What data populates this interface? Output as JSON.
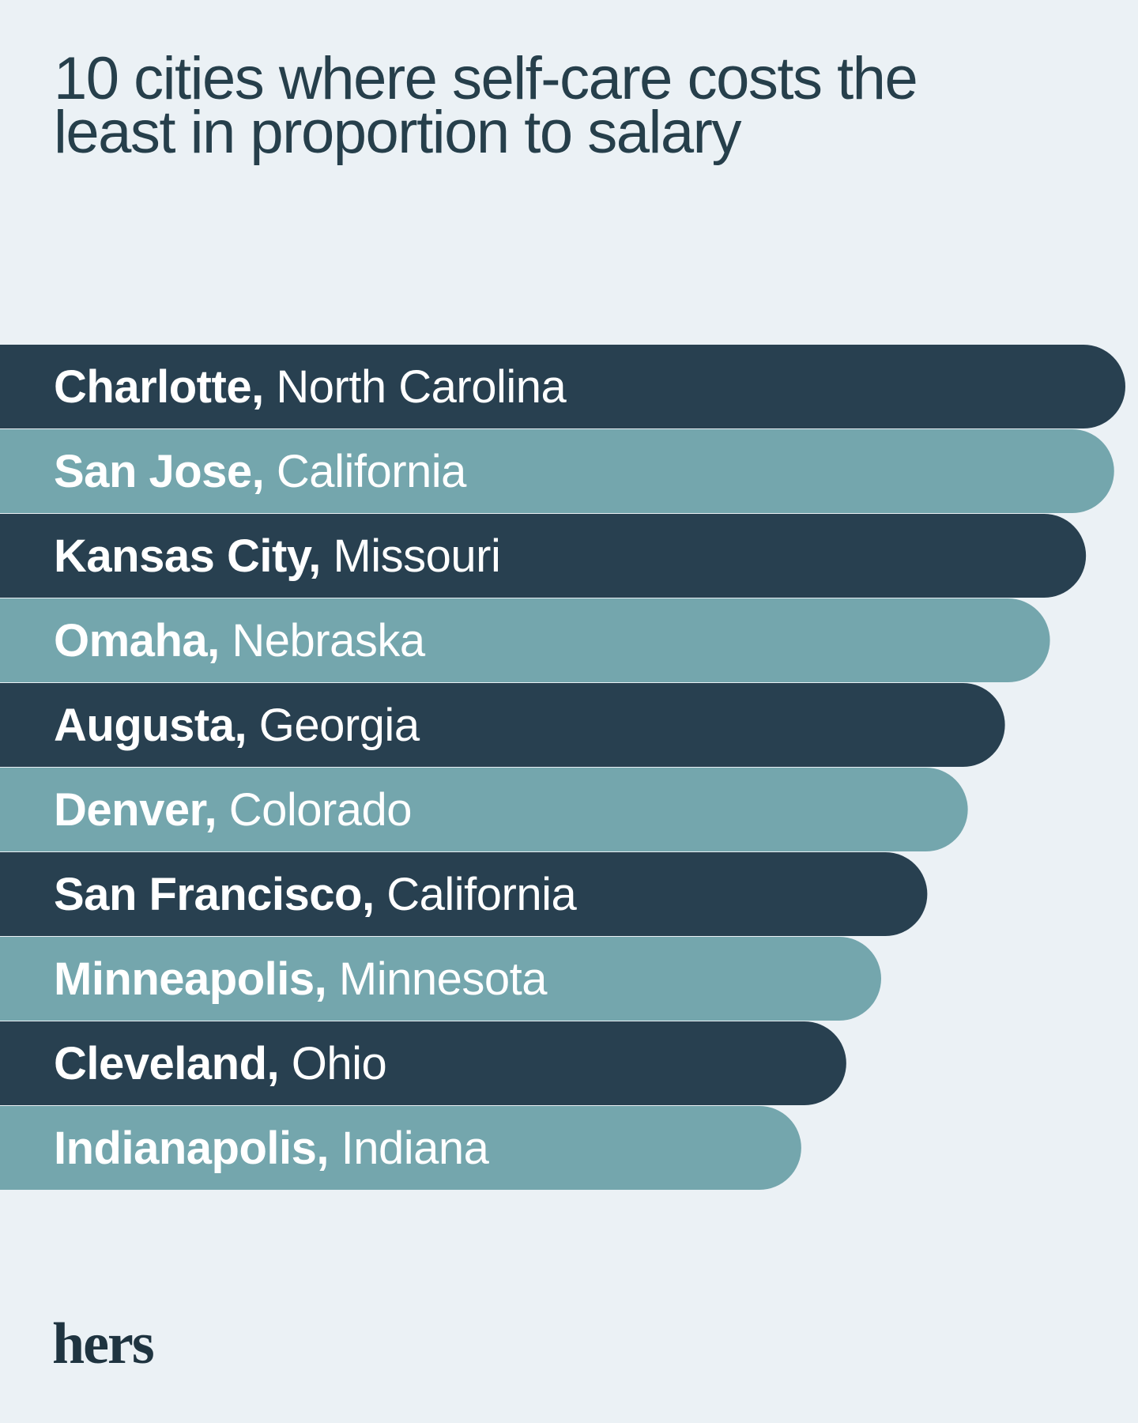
{
  "title_lines": [
    "10 cities where self-care costs the",
    "least in proportion to salary"
  ],
  "brand": "hers",
  "colors": {
    "background": "#ebf1f5",
    "dark_bar": "#284050",
    "light_bar": "#74a6ad",
    "label_text": "#ffffff",
    "title_text": "#263f4b"
  },
  "chart_data": {
    "type": "bar",
    "orientation": "horizontal",
    "categories": [
      {
        "city": "Charlotte,",
        "state": "North Carolina"
      },
      {
        "city": "San Jose,",
        "state": "California"
      },
      {
        "city": "Kansas City,",
        "state": "Missouri"
      },
      {
        "city": "Omaha,",
        "state": "Nebraska"
      },
      {
        "city": "Augusta,",
        "state": "Georgia"
      },
      {
        "city": "Denver,",
        "state": "Colorado"
      },
      {
        "city": "San Francisco,",
        "state": "California"
      },
      {
        "city": "Minneapolis,",
        "state": "Minnesota"
      },
      {
        "city": "Cleveland,",
        "state": "Ohio"
      },
      {
        "city": "Indianapolis,",
        "state": "Indiana"
      }
    ],
    "values": [
      100,
      99,
      96.5,
      93.3,
      89.3,
      86,
      82.4,
      78.3,
      75.2,
      71.2
    ],
    "value_axis": "relative bar length, longest = 100 (no axis printed)",
    "bar_colors_alternate": [
      "#284050",
      "#74a6ad"
    ],
    "grid": false,
    "legend": "none"
  }
}
